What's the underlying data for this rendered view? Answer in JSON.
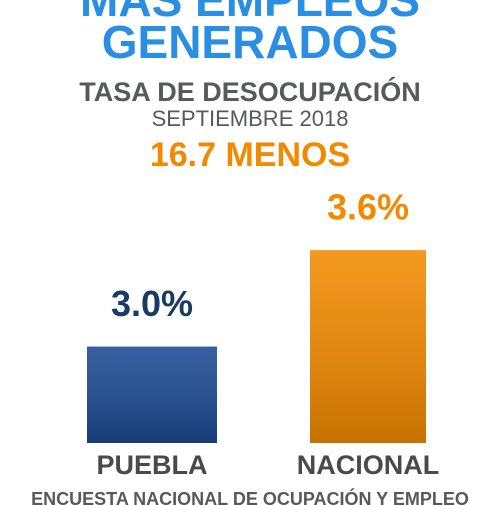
{
  "chart_data": {
    "type": "bar",
    "title_lines": [
      "MÁS EMPLEOS",
      "GENERADOS"
    ],
    "subtitle": "TASA DE DESOCUPACIÓN",
    "date": "SEPTIEMBRE 2018",
    "annotation": "16.7 MENOS",
    "source": "ENCUESTA NACIONAL DE OCUPACIÓN Y EMPLEO",
    "categories": [
      "PUEBLA",
      "NACIONAL"
    ],
    "values": [
      3.0,
      3.6
    ],
    "value_labels": [
      "3.0%",
      "3.6%"
    ],
    "colors": [
      "#1c4a93",
      "#f28a00"
    ],
    "value_label_colors": [
      "#173b62",
      "#f28a00"
    ],
    "ylim": [
      2.4,
      3.8
    ]
  }
}
